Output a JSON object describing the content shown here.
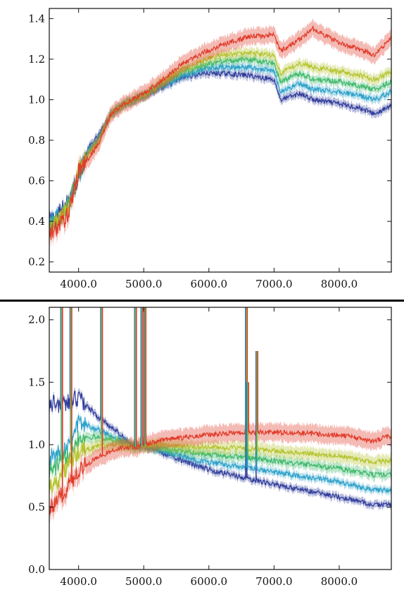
{
  "chart_data": [
    {
      "type": "line",
      "title": "",
      "xlabel": "",
      "ylabel": "",
      "xlim": [
        3550,
        8800
      ],
      "ylim": [
        0.15,
        1.45
      ],
      "xticks": [
        "4000.0",
        "5000.0",
        "6000.0",
        "7000.0",
        "8000.0"
      ],
      "xtick_values": [
        4000,
        5000,
        6000,
        7000,
        8000
      ],
      "yticks": [
        "0.2",
        "0.4",
        "0.6",
        "0.8",
        "1.0",
        "1.2",
        "1.4"
      ],
      "ytick_values": [
        0.2,
        0.4,
        0.6,
        0.8,
        1.0,
        1.2,
        1.4
      ],
      "grid": false,
      "legend": "none",
      "x": [
        3550,
        3700,
        3850,
        4000,
        4150,
        4300,
        4500,
        4700,
        5000,
        5300,
        5600,
        5900,
        6200,
        6600,
        7000,
        7100,
        7400,
        7600,
        8000,
        8300,
        8550,
        8800
      ],
      "series": [
        {
          "color": "#2f3b9a",
          "band": 0.02,
          "values": [
            0.4,
            0.44,
            0.5,
            0.62,
            0.76,
            0.82,
            0.93,
            0.98,
            1.02,
            1.06,
            1.11,
            1.13,
            1.13,
            1.12,
            1.1,
            1.0,
            1.03,
            1.0,
            0.98,
            0.96,
            0.93,
            0.97
          ]
        },
        {
          "color": "#2aa0c8",
          "band": 0.02,
          "values": [
            0.39,
            0.43,
            0.49,
            0.63,
            0.75,
            0.81,
            0.93,
            0.98,
            1.02,
            1.07,
            1.12,
            1.15,
            1.16,
            1.16,
            1.14,
            1.04,
            1.08,
            1.05,
            1.04,
            1.02,
            1.0,
            1.04
          ]
        },
        {
          "color": "#3db86a",
          "band": 0.02,
          "values": [
            0.37,
            0.42,
            0.48,
            0.64,
            0.74,
            0.8,
            0.93,
            0.98,
            1.02,
            1.08,
            1.14,
            1.17,
            1.19,
            1.2,
            1.18,
            1.09,
            1.13,
            1.1,
            1.09,
            1.07,
            1.05,
            1.09
          ]
        },
        {
          "color": "#b5c42e",
          "band": 0.025,
          "values": [
            0.36,
            0.41,
            0.47,
            0.65,
            0.73,
            0.79,
            0.93,
            0.98,
            1.02,
            1.09,
            1.15,
            1.19,
            1.22,
            1.23,
            1.22,
            1.13,
            1.18,
            1.16,
            1.14,
            1.12,
            1.1,
            1.14
          ]
        },
        {
          "color": "#e03a28",
          "band": 0.04,
          "values": [
            0.33,
            0.38,
            0.44,
            0.65,
            0.71,
            0.78,
            0.93,
            0.98,
            1.03,
            1.1,
            1.18,
            1.23,
            1.27,
            1.31,
            1.32,
            1.24,
            1.3,
            1.35,
            1.28,
            1.25,
            1.22,
            1.31
          ]
        }
      ]
    },
    {
      "type": "line",
      "title": "",
      "xlabel": "",
      "ylabel": "",
      "xlim": [
        3550,
        8800
      ],
      "ylim": [
        0.0,
        2.1
      ],
      "xticks": [
        "4000.0",
        "5000.0",
        "6000.0",
        "7000.0",
        "8000.0"
      ],
      "xtick_values": [
        4000,
        5000,
        6000,
        7000,
        8000
      ],
      "yticks": [
        "0.0",
        "0.5",
        "1.0",
        "1.5",
        "2.0"
      ],
      "ytick_values": [
        0.0,
        0.5,
        1.0,
        1.5,
        2.0
      ],
      "grid": false,
      "legend": "none",
      "x": [
        3620,
        3800,
        4000,
        4300,
        4600,
        4860,
        5000,
        5300,
        5700,
        6000,
        6500,
        7000,
        7500,
        8000,
        8500,
        8800
      ],
      "series": [
        {
          "color": "#2f3b9a",
          "band": 0.03,
          "values": [
            1.33,
            1.32,
            1.38,
            1.22,
            1.1,
            0.98,
            0.99,
            0.93,
            0.85,
            0.8,
            0.74,
            0.68,
            0.63,
            0.58,
            0.52,
            0.52
          ]
        },
        {
          "color": "#2aa0c8",
          "band": 0.03,
          "values": [
            0.9,
            0.98,
            1.18,
            1.12,
            1.05,
            0.98,
            0.99,
            0.95,
            0.89,
            0.86,
            0.82,
            0.78,
            0.74,
            0.7,
            0.64,
            0.63
          ]
        },
        {
          "color": "#3db86a",
          "band": 0.04,
          "values": [
            0.8,
            0.9,
            1.06,
            1.06,
            1.03,
            0.98,
            0.99,
            0.97,
            0.94,
            0.92,
            0.9,
            0.87,
            0.84,
            0.81,
            0.76,
            0.76
          ]
        },
        {
          "color": "#b5c42e",
          "band": 0.05,
          "values": [
            0.68,
            0.8,
            0.94,
            0.99,
            1.0,
            0.98,
            0.99,
            1.0,
            0.98,
            0.98,
            0.97,
            0.95,
            0.93,
            0.91,
            0.86,
            0.87
          ]
        },
        {
          "color": "#e03a28",
          "band": 0.07,
          "values": [
            0.5,
            0.64,
            0.8,
            0.9,
            0.97,
            0.98,
            1.0,
            1.04,
            1.06,
            1.08,
            1.1,
            1.1,
            1.09,
            1.08,
            1.03,
            1.07
          ]
        }
      ],
      "emission_lines": [
        {
          "x": 3727,
          "peak": 2.1
        },
        {
          "x": 3869,
          "peak": 2.1
        },
        {
          "x": 4340,
          "peak": 2.1
        },
        {
          "x": 4861,
          "peak": 2.1
        },
        {
          "x": 4959,
          "peak": 2.1
        },
        {
          "x": 5007,
          "peak": 2.1
        },
        {
          "x": 6563,
          "peak": 2.1
        },
        {
          "x": 6583,
          "peak": 1.5
        },
        {
          "x": 6724,
          "peak": 1.75
        }
      ]
    }
  ]
}
